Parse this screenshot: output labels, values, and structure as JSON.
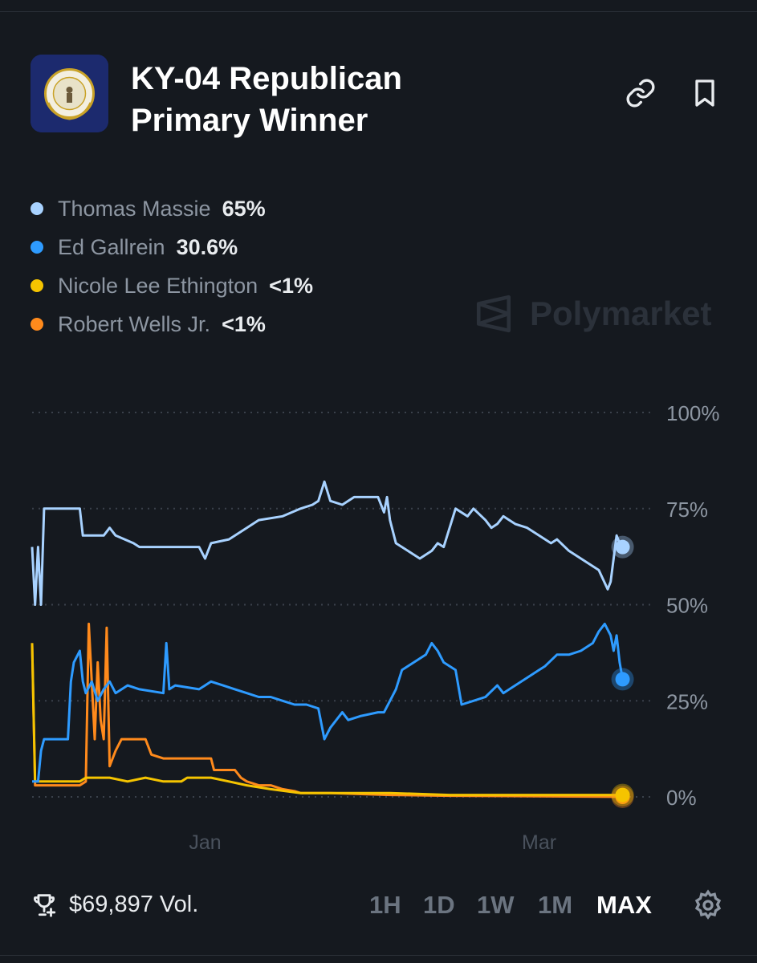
{
  "market": {
    "title_line1": "KY-04 Republican",
    "title_line2": "Primary Winner",
    "logo_icon": "kentucky-seal-icon",
    "watermark": "Polymarket"
  },
  "header_actions": [
    {
      "name": "link-icon"
    },
    {
      "name": "bookmark-icon"
    }
  ],
  "legend": [
    {
      "name": "Thomas Massie",
      "value": "65%",
      "color": "#a8d2ff"
    },
    {
      "name": "Ed Gallrein",
      "value": "30.6%",
      "color": "#2e9bff"
    },
    {
      "name": "Nicole Lee Ethington",
      "value": "<1%",
      "color": "#f5c400"
    },
    {
      "name": "Robert Wells Jr.",
      "value": "<1%",
      "color": "#ff8a1c"
    }
  ],
  "chart_data": {
    "type": "line",
    "x_range": [
      0,
      100
    ],
    "ylim": [
      0,
      100
    ],
    "y_ticks": [
      {
        "value": 100,
        "label": "100%"
      },
      {
        "value": 75,
        "label": "75%"
      },
      {
        "value": 50,
        "label": "50%"
      },
      {
        "value": 25,
        "label": "25%"
      },
      {
        "value": 0,
        "label": "0%"
      }
    ],
    "x_ticks": [
      {
        "x": 29,
        "label": "Jan"
      },
      {
        "x": 85,
        "label": "Mar"
      }
    ],
    "grid": true,
    "series": [
      {
        "name": "Thomas Massie",
        "color": "#a8d2ff",
        "points": [
          [
            0,
            65
          ],
          [
            0.5,
            50
          ],
          [
            1,
            65
          ],
          [
            1.5,
            50
          ],
          [
            2,
            75
          ],
          [
            8,
            75
          ],
          [
            8.5,
            68
          ],
          [
            12,
            68
          ],
          [
            13,
            70
          ],
          [
            14,
            68
          ],
          [
            17,
            66
          ],
          [
            18,
            65
          ],
          [
            28,
            65
          ],
          [
            29,
            62
          ],
          [
            30,
            66
          ],
          [
            33,
            67
          ],
          [
            36,
            70
          ],
          [
            38,
            72
          ],
          [
            42,
            73
          ],
          [
            45,
            75
          ],
          [
            47,
            76
          ],
          [
            48,
            77
          ],
          [
            49,
            82
          ],
          [
            50,
            77
          ],
          [
            52,
            76
          ],
          [
            54,
            78
          ],
          [
            58,
            78
          ],
          [
            59,
            74
          ],
          [
            59.5,
            78
          ],
          [
            60,
            72
          ],
          [
            61,
            66
          ],
          [
            63,
            64
          ],
          [
            65,
            62
          ],
          [
            67,
            64
          ],
          [
            68,
            66
          ],
          [
            69,
            65
          ],
          [
            70,
            70
          ],
          [
            71,
            75
          ],
          [
            73,
            73
          ],
          [
            74,
            75
          ],
          [
            76,
            72
          ],
          [
            77,
            70
          ],
          [
            78,
            71
          ],
          [
            79,
            73
          ],
          [
            80,
            72
          ],
          [
            81,
            71
          ],
          [
            83,
            70
          ],
          [
            84,
            69
          ],
          [
            85,
            68
          ],
          [
            87,
            66
          ],
          [
            88,
            67
          ],
          [
            90,
            64
          ],
          [
            92,
            62
          ],
          [
            95,
            59
          ],
          [
            96.5,
            54
          ],
          [
            97,
            56
          ],
          [
            97.5,
            62
          ],
          [
            98,
            68
          ],
          [
            98.5,
            66
          ],
          [
            99,
            65
          ]
        ]
      },
      {
        "name": "Ed Gallrein",
        "color": "#2e9bff",
        "points": [
          [
            0,
            4
          ],
          [
            1,
            4
          ],
          [
            1.5,
            12
          ],
          [
            2,
            15
          ],
          [
            6,
            15
          ],
          [
            6.5,
            30
          ],
          [
            7,
            35
          ],
          [
            8,
            38
          ],
          [
            8.5,
            30
          ],
          [
            9,
            27
          ],
          [
            10,
            30
          ],
          [
            11,
            25
          ],
          [
            12,
            28
          ],
          [
            13,
            30
          ],
          [
            14,
            27
          ],
          [
            16,
            29
          ],
          [
            18,
            28
          ],
          [
            22,
            27
          ],
          [
            22.5,
            40
          ],
          [
            23,
            28
          ],
          [
            24,
            29
          ],
          [
            28,
            28
          ],
          [
            30,
            30
          ],
          [
            32,
            29
          ],
          [
            34,
            28
          ],
          [
            36,
            27
          ],
          [
            38,
            26
          ],
          [
            40,
            26
          ],
          [
            42,
            25
          ],
          [
            44,
            24
          ],
          [
            46,
            24
          ],
          [
            48,
            23
          ],
          [
            49,
            15
          ],
          [
            50,
            18
          ],
          [
            52,
            22
          ],
          [
            53,
            20
          ],
          [
            55,
            21
          ],
          [
            58,
            22
          ],
          [
            59,
            22
          ],
          [
            60,
            25
          ],
          [
            61,
            28
          ],
          [
            62,
            33
          ],
          [
            64,
            35
          ],
          [
            66,
            37
          ],
          [
            67,
            40
          ],
          [
            68,
            38
          ],
          [
            69,
            35
          ],
          [
            71,
            33
          ],
          [
            72,
            24
          ],
          [
            74,
            25
          ],
          [
            76,
            26
          ],
          [
            78,
            29
          ],
          [
            79,
            27
          ],
          [
            81,
            29
          ],
          [
            83,
            31
          ],
          [
            85,
            33
          ],
          [
            86,
            34
          ],
          [
            88,
            37
          ],
          [
            90,
            37
          ],
          [
            92,
            38
          ],
          [
            94,
            40
          ],
          [
            95,
            43
          ],
          [
            96,
            45
          ],
          [
            97,
            42
          ],
          [
            97.5,
            38
          ],
          [
            98,
            42
          ],
          [
            98.5,
            35
          ],
          [
            99,
            30.6
          ]
        ]
      },
      {
        "name": "Nicole Lee Ethington",
        "color": "#f5c400",
        "points": [
          [
            0,
            40
          ],
          [
            0.5,
            4
          ],
          [
            3,
            4
          ],
          [
            5,
            4
          ],
          [
            7,
            4
          ],
          [
            8,
            4
          ],
          [
            9,
            5
          ],
          [
            13,
            5
          ],
          [
            16,
            4
          ],
          [
            19,
            5
          ],
          [
            22,
            4
          ],
          [
            25,
            4
          ],
          [
            26,
            5
          ],
          [
            30,
            5
          ],
          [
            33,
            4
          ],
          [
            36,
            3
          ],
          [
            40,
            2
          ],
          [
            45,
            1
          ],
          [
            60,
            1
          ],
          [
            70,
            0.5
          ],
          [
            80,
            0.5
          ],
          [
            99,
            0.5
          ]
        ]
      },
      {
        "name": "Robert Wells Jr.",
        "color": "#ff8a1c",
        "points": [
          [
            0,
            40
          ],
          [
            0.5,
            3
          ],
          [
            4,
            3
          ],
          [
            8,
            3
          ],
          [
            9,
            4
          ],
          [
            9.5,
            45
          ],
          [
            10.5,
            15
          ],
          [
            11,
            35
          ],
          [
            11.5,
            20
          ],
          [
            12,
            15
          ],
          [
            12.5,
            44
          ],
          [
            13,
            8
          ],
          [
            14,
            12
          ],
          [
            15,
            15
          ],
          [
            19,
            15
          ],
          [
            20,
            11
          ],
          [
            22,
            10
          ],
          [
            30,
            10
          ],
          [
            30.5,
            7
          ],
          [
            34,
            7
          ],
          [
            35,
            5
          ],
          [
            36,
            4
          ],
          [
            38,
            3
          ],
          [
            40,
            3
          ],
          [
            42,
            2
          ],
          [
            44,
            1.5
          ],
          [
            45,
            1
          ],
          [
            50,
            1
          ],
          [
            60,
            0.5
          ],
          [
            70,
            0.3
          ],
          [
            80,
            0.2
          ],
          [
            99,
            0
          ]
        ]
      }
    ]
  },
  "footer": {
    "volume_icon": "trophy-icon",
    "volume": "$69,897 Vol.",
    "timeframes": [
      "1H",
      "1D",
      "1W",
      "1M",
      "MAX"
    ],
    "active_timeframe": "MAX",
    "settings_icon": "gear-icon"
  }
}
